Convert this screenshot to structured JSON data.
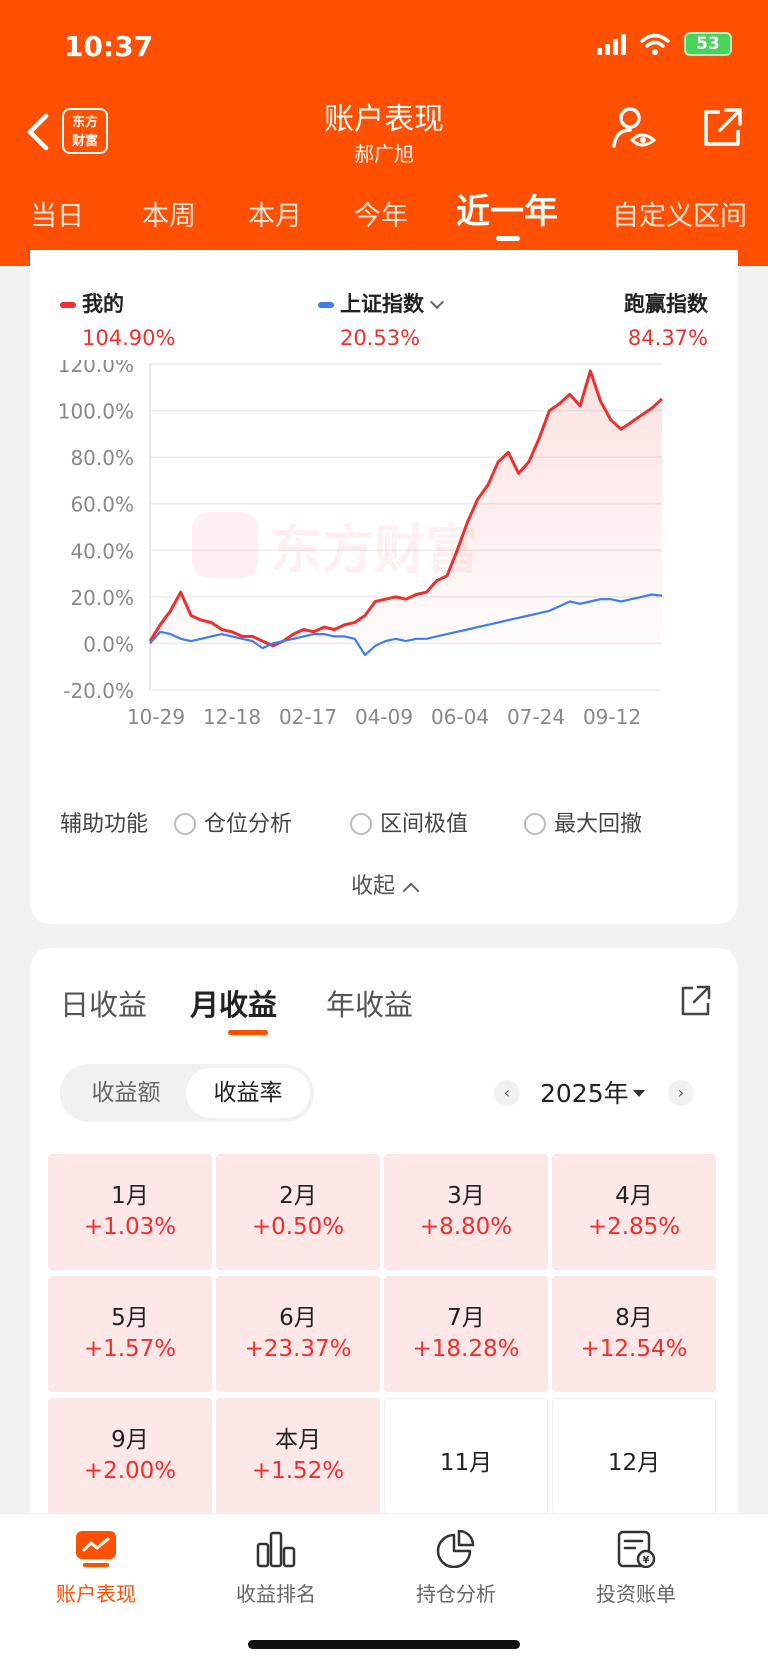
{
  "status_bar": {
    "time": "10:37",
    "battery": "53"
  },
  "header": {
    "logo_text_line1": "东方",
    "logo_text_line2": "财富",
    "title": "账户表现",
    "subtitle": "郝广旭"
  },
  "range_tabs": [
    {
      "label": "当日",
      "active": false
    },
    {
      "label": "本周",
      "active": false
    },
    {
      "label": "本月",
      "active": false
    },
    {
      "label": "今年",
      "active": false
    },
    {
      "label": "近一年",
      "active": true
    },
    {
      "label": "自定义区间",
      "active": false
    }
  ],
  "legend": {
    "mine": {
      "label": "我的",
      "value": "104.90%",
      "color": "#f02e2e"
    },
    "index": {
      "label": "上证指数",
      "value": "20.53%",
      "color": "#3c7ef2"
    },
    "beat": {
      "label": "跑赢指数",
      "value": "84.37%"
    }
  },
  "watermark": "东方财富",
  "chart_data": {
    "type": "line",
    "x_tick_labels": [
      "10-29",
      "12-18",
      "02-17",
      "04-09",
      "06-04",
      "07-24",
      "09-12"
    ],
    "y_tick_labels": [
      "120.0%",
      "100.0%",
      "80.0%",
      "60.0%",
      "40.0%",
      "20.0%",
      "0.0%",
      "-20.0%"
    ],
    "ylim": [
      -20,
      120
    ],
    "grid": true,
    "series": [
      {
        "name": "我的",
        "color": "#f02e2e",
        "x": [
          0,
          2,
          4,
          6,
          8,
          10,
          12,
          14,
          16,
          18,
          20,
          22,
          24,
          26,
          28,
          30,
          32,
          34,
          36,
          38,
          40,
          42,
          44,
          46,
          48,
          50,
          52,
          54,
          56,
          58,
          60,
          62,
          64,
          66,
          68,
          70,
          72,
          74,
          76,
          78,
          80,
          82,
          84,
          86,
          88,
          90,
          92,
          94,
          96,
          98,
          100
        ],
        "values": [
          1,
          8,
          14,
          22,
          12,
          10,
          9,
          6,
          5,
          3,
          3,
          1,
          -1,
          1,
          4,
          6,
          5,
          7,
          6,
          8,
          9,
          12,
          18,
          19,
          20,
          19,
          21,
          22,
          27,
          29,
          40,
          52,
          62,
          68,
          78,
          82,
          73,
          78,
          88,
          100,
          103,
          107,
          102,
          117,
          104,
          96,
          92,
          95,
          98,
          101,
          105
        ]
      },
      {
        "name": "上证指数",
        "color": "#3c7ef2",
        "x": [
          0,
          2,
          4,
          6,
          8,
          10,
          12,
          14,
          16,
          18,
          20,
          22,
          24,
          26,
          28,
          30,
          32,
          34,
          36,
          38,
          40,
          42,
          44,
          46,
          48,
          50,
          52,
          54,
          56,
          58,
          60,
          62,
          64,
          66,
          68,
          70,
          72,
          74,
          76,
          78,
          80,
          82,
          84,
          86,
          88,
          90,
          92,
          94,
          96,
          98,
          100
        ],
        "values": [
          0,
          5,
          4,
          2,
          1,
          2,
          3,
          4,
          3,
          2,
          1,
          -2,
          0,
          1,
          2,
          3,
          4,
          4,
          3,
          3,
          2,
          -5,
          -1,
          1,
          2,
          1,
          2,
          2,
          3,
          4,
          5,
          6,
          7,
          8,
          9,
          10,
          11,
          12,
          13,
          14,
          16,
          18,
          17,
          18,
          19,
          19,
          18,
          19,
          20,
          21,
          20.5
        ]
      }
    ]
  },
  "aux": {
    "label": "辅助功能",
    "options": [
      "仓位分析",
      "区间极值",
      "最大回撤"
    ],
    "collapse": "收起"
  },
  "period_tabs": [
    {
      "label": "日收益",
      "active": false
    },
    {
      "label": "月收益",
      "active": true
    },
    {
      "label": "年收益",
      "active": false
    }
  ],
  "toggle": {
    "amount": "收益额",
    "rate": "收益率"
  },
  "year_picker": {
    "prev": "‹",
    "year": "2025年",
    "next": "›"
  },
  "months": [
    {
      "name": "1月",
      "value": "+1.03%"
    },
    {
      "name": "2月",
      "value": "+0.50%"
    },
    {
      "name": "3月",
      "value": "+8.80%"
    },
    {
      "name": "4月",
      "value": "+2.85%"
    },
    {
      "name": "5月",
      "value": "+1.57%"
    },
    {
      "name": "6月",
      "value": "+23.37%"
    },
    {
      "name": "7月",
      "value": "+18.28%"
    },
    {
      "name": "8月",
      "value": "+12.54%"
    },
    {
      "name": "9月",
      "value": "+2.00%"
    },
    {
      "name": "本月",
      "value": "+1.52%"
    },
    {
      "name": "11月",
      "value": ""
    },
    {
      "name": "12月",
      "value": ""
    }
  ],
  "tabbar": [
    {
      "label": "账户表现",
      "icon": "chart-monitor-icon",
      "active": true
    },
    {
      "label": "收益排名",
      "icon": "bar-chart-icon",
      "active": false
    },
    {
      "label": "持仓分析",
      "icon": "pie-chart-icon",
      "active": false
    },
    {
      "label": "投资账单",
      "icon": "bill-icon",
      "active": false
    }
  ]
}
